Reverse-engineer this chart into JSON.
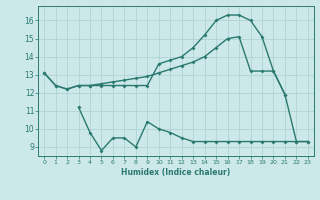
{
  "bg_color": "#cce8e8",
  "grid_color": "#aacfcf",
  "line_color": "#2a7a70",
  "c1x": [
    0,
    1,
    2,
    3,
    4,
    5,
    6,
    7,
    8,
    9,
    10,
    11,
    12,
    13,
    14,
    15,
    16,
    17,
    18,
    19,
    20,
    21
  ],
  "c1y": [
    13.1,
    12.4,
    12.2,
    12.4,
    12.4,
    12.4,
    12.4,
    12.4,
    12.4,
    12.4,
    13.6,
    13.8,
    14.0,
    14.5,
    15.2,
    16.0,
    16.3,
    16.3,
    16.0,
    15.1,
    13.2,
    11.9
  ],
  "c2x": [
    0,
    1,
    2,
    3,
    4,
    5,
    6,
    7,
    8,
    9,
    10,
    11,
    12,
    13,
    14,
    15,
    16,
    17,
    18,
    19,
    20,
    21,
    22,
    23
  ],
  "c2y": [
    13.1,
    12.4,
    12.2,
    12.4,
    12.4,
    12.5,
    12.6,
    12.7,
    12.8,
    12.9,
    13.1,
    13.3,
    13.5,
    13.7,
    14.0,
    14.5,
    15.0,
    15.1,
    13.2,
    13.2,
    13.2,
    11.9,
    9.3,
    9.3
  ],
  "c3x": [
    3,
    4,
    5,
    6,
    7,
    8,
    9,
    10,
    11,
    12,
    13,
    14,
    15,
    16,
    17,
    18,
    19,
    20,
    21,
    22,
    23
  ],
  "c3y": [
    11.2,
    9.8,
    8.8,
    9.5,
    9.5,
    9.0,
    10.4,
    10.0,
    9.8,
    9.5,
    9.3,
    9.3,
    9.3,
    9.3,
    9.3,
    9.3,
    9.3,
    9.3,
    9.3,
    9.3,
    9.3
  ],
  "xlim": [
    -0.5,
    23.5
  ],
  "ylim": [
    8.5,
    16.8
  ],
  "yticks": [
    9,
    10,
    11,
    12,
    13,
    14,
    15,
    16
  ],
  "xticks": [
    0,
    1,
    2,
    3,
    4,
    5,
    6,
    7,
    8,
    9,
    10,
    11,
    12,
    13,
    14,
    15,
    16,
    17,
    18,
    19,
    20,
    21,
    22,
    23
  ],
  "xlabel": "Humidex (Indice chaleur)",
  "marker_size": 2.0,
  "linewidth": 1.0
}
